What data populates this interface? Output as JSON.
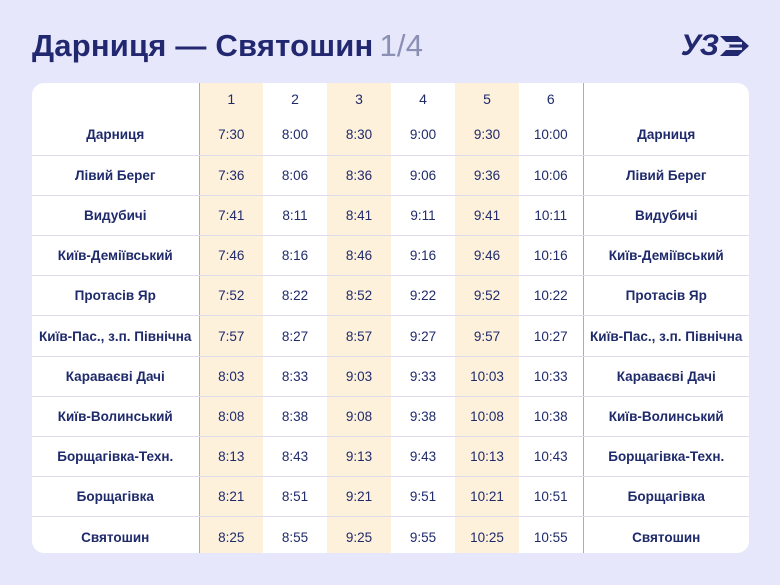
{
  "title": {
    "route": "Дарниця — Святошин",
    "page": "1/4"
  },
  "logo": {
    "text": "УЗ",
    "icon": "uz-logo-icon"
  },
  "colors": {
    "background": "#e7e7fb",
    "text": "#1f2a6b",
    "highlight_column": "#fdf1dc",
    "column_border": "#e6a73a"
  },
  "train_numbers": [
    "1",
    "2",
    "3",
    "4",
    "5",
    "6"
  ],
  "rows": [
    {
      "station": "Дарниця",
      "times": [
        "7:30",
        "8:00",
        "8:30",
        "9:00",
        "9:30",
        "10:00"
      ]
    },
    {
      "station": "Лівий Берег",
      "times": [
        "7:36",
        "8:06",
        "8:36",
        "9:06",
        "9:36",
        "10:06"
      ]
    },
    {
      "station": "Видубичі",
      "times": [
        "7:41",
        "8:11",
        "8:41",
        "9:11",
        "9:41",
        "10:11"
      ]
    },
    {
      "station": "Київ-Деміївський",
      "times": [
        "7:46",
        "8:16",
        "8:46",
        "9:16",
        "9:46",
        "10:16"
      ]
    },
    {
      "station": "Протасів Яр",
      "times": [
        "7:52",
        "8:22",
        "8:52",
        "9:22",
        "9:52",
        "10:22"
      ]
    },
    {
      "station": "Київ-Пас., з.п. Північна",
      "times": [
        "7:57",
        "8:27",
        "8:57",
        "9:27",
        "9:57",
        "10:27"
      ]
    },
    {
      "station": "Караваєві Дачі",
      "times": [
        "8:03",
        "8:33",
        "9:03",
        "9:33",
        "10:03",
        "10:33"
      ]
    },
    {
      "station": "Київ-Волинський",
      "times": [
        "8:08",
        "8:38",
        "9:08",
        "9:38",
        "10:08",
        "10:38"
      ]
    },
    {
      "station": "Борщагівка-Техн.",
      "times": [
        "8:13",
        "8:43",
        "9:13",
        "9:43",
        "10:13",
        "10:43"
      ]
    },
    {
      "station": "Борщагівка",
      "times": [
        "8:21",
        "8:51",
        "9:21",
        "9:51",
        "10:21",
        "10:51"
      ]
    },
    {
      "station": "Святошин",
      "times": [
        "8:25",
        "8:55",
        "9:25",
        "9:55",
        "10:25",
        "10:55"
      ]
    }
  ]
}
